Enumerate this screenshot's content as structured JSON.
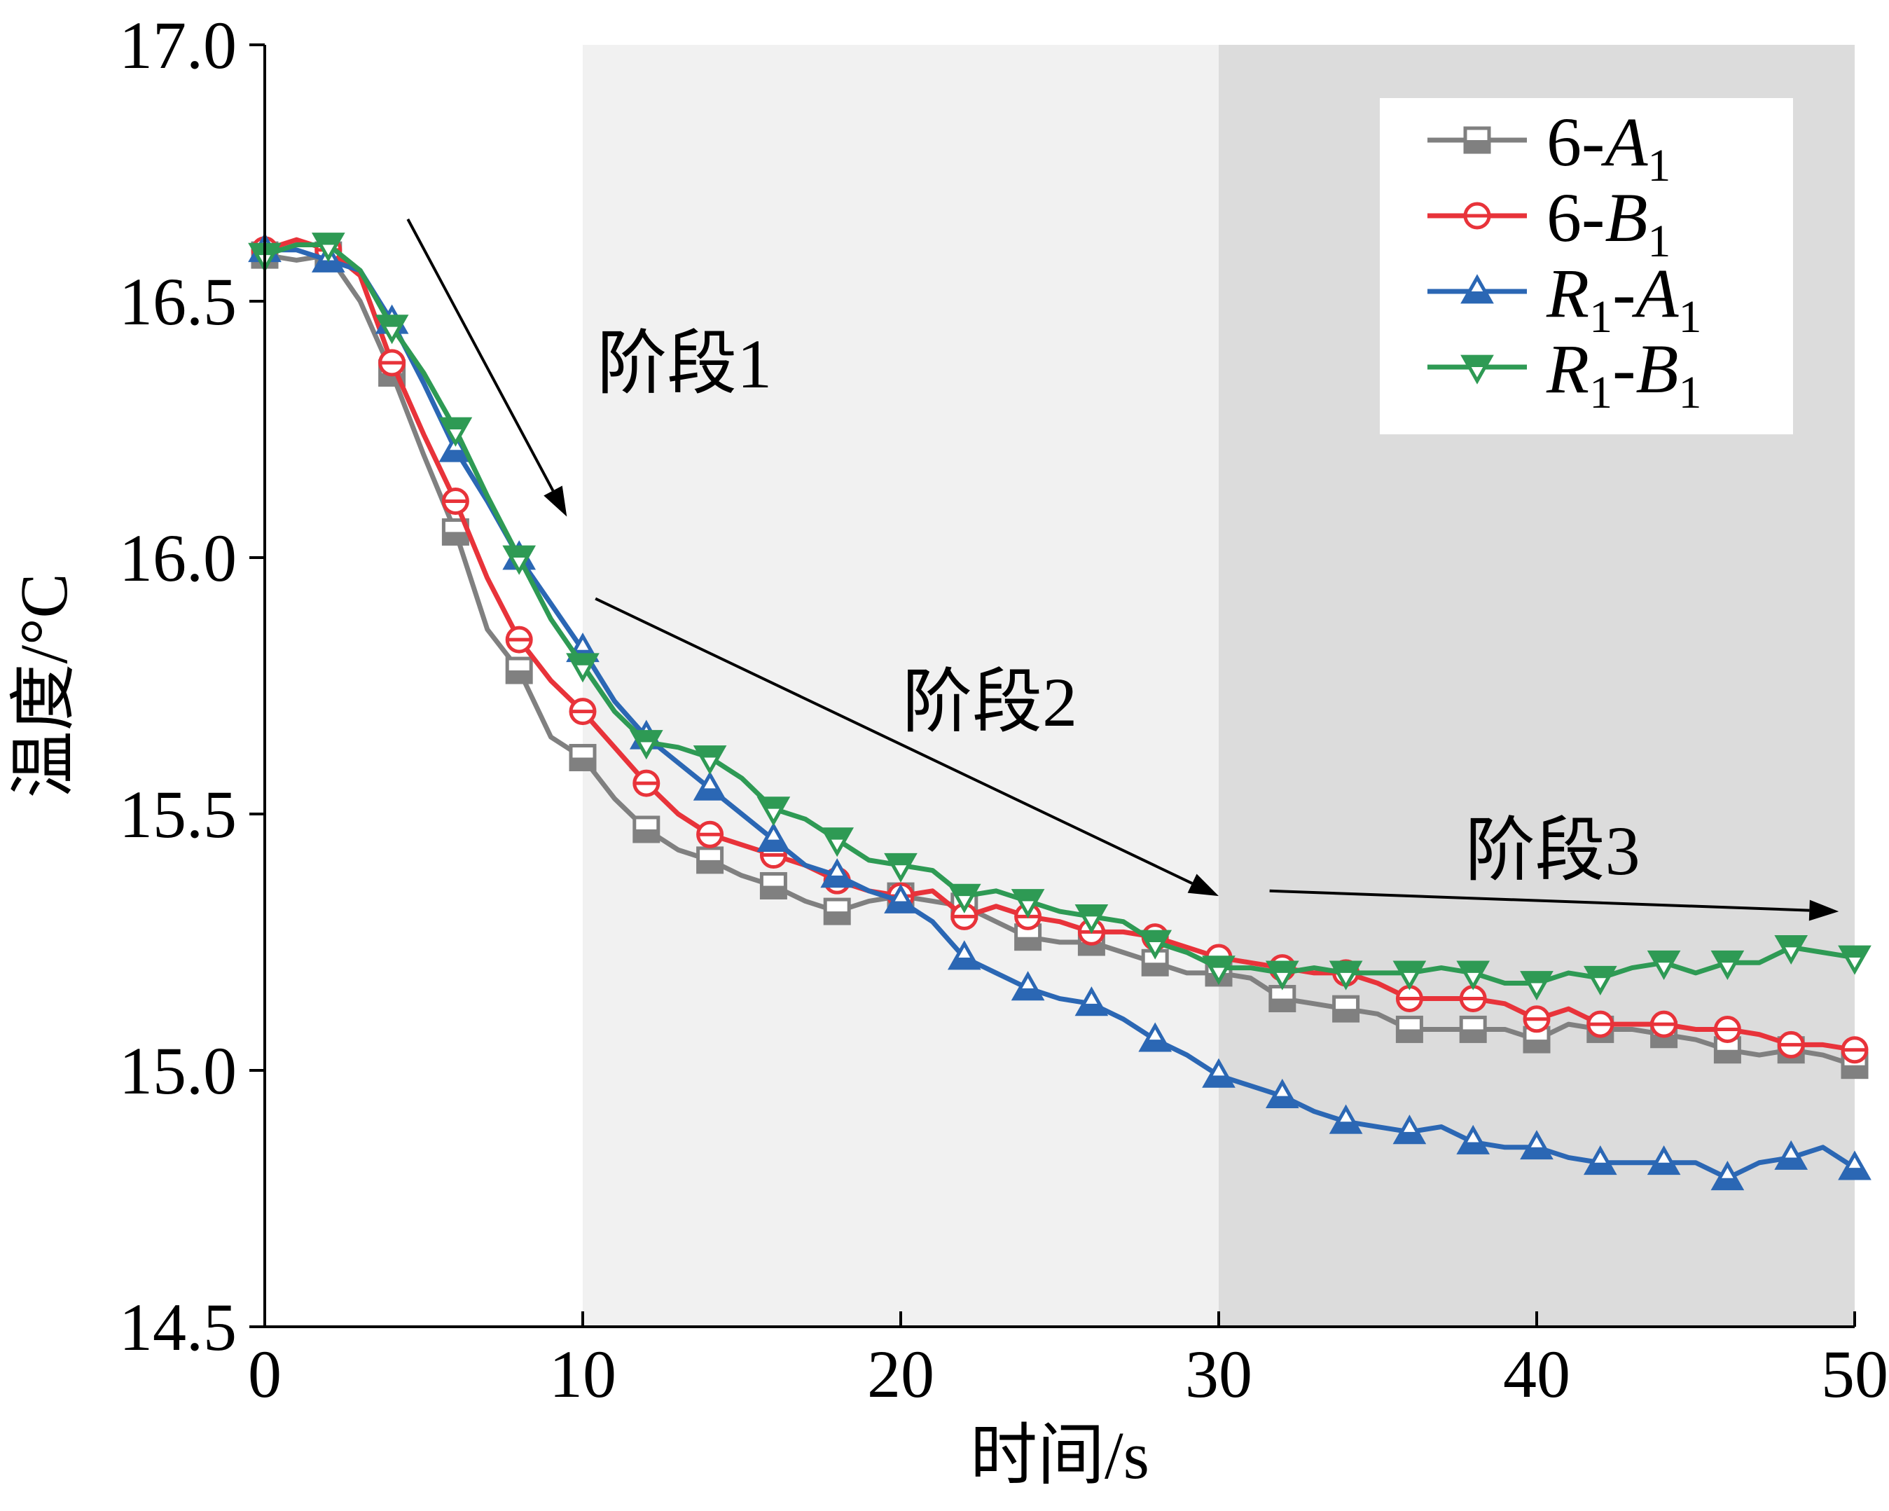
{
  "chart_data": {
    "type": "line",
    "xlabel": "时间/s",
    "ylabel": "温度/°C",
    "xlim": [
      0,
      50
    ],
    "ylim": [
      14.5,
      17.0
    ],
    "x_ticks": [
      "0",
      "10",
      "20",
      "30",
      "40",
      "50"
    ],
    "y_ticks": [
      "14.5",
      "15.0",
      "15.5",
      "16.0",
      "16.5",
      "17.0"
    ],
    "grid": false,
    "legend_position": "top-right",
    "shaded_regions": [
      {
        "x": [
          10,
          30
        ],
        "color": "#f1f1f1"
      },
      {
        "x": [
          30,
          50
        ],
        "color": "#dcdcdc"
      }
    ],
    "annotations": [
      {
        "text": "阶段1",
        "x": 13.2,
        "y": 16.38,
        "arrow_from": [
          4.5,
          16.66
        ],
        "arrow_to": [
          9.5,
          16.08
        ]
      },
      {
        "text": "阶段2",
        "x": 22.8,
        "y": 15.72,
        "arrow_from": [
          10.4,
          15.92
        ],
        "arrow_to": [
          30.0,
          15.34
        ]
      },
      {
        "text": "阶段3",
        "x": 40.5,
        "y": 15.43,
        "arrow_from": [
          31.6,
          15.35
        ],
        "arrow_to": [
          49.5,
          15.31
        ]
      }
    ],
    "series": [
      {
        "name": "6-A1",
        "label_parts": [
          "6-",
          "A",
          "1"
        ],
        "color": "#808080",
        "marker": "square",
        "x": [
          0,
          1,
          2,
          3,
          4,
          5,
          6,
          7,
          8,
          9,
          10,
          11,
          12,
          13,
          14,
          15,
          16,
          17,
          18,
          19,
          20,
          21,
          22,
          23,
          24,
          25,
          26,
          27,
          28,
          29,
          30,
          31,
          32,
          33,
          34,
          35,
          36,
          37,
          38,
          39,
          40,
          41,
          42,
          43,
          44,
          45,
          46,
          47,
          48,
          49,
          50
        ],
        "y": [
          16.59,
          16.58,
          16.59,
          16.5,
          16.36,
          16.2,
          16.05,
          15.86,
          15.78,
          15.65,
          15.61,
          15.53,
          15.47,
          15.43,
          15.41,
          15.38,
          15.36,
          15.33,
          15.31,
          15.33,
          15.34,
          15.33,
          15.32,
          15.29,
          15.26,
          15.25,
          15.25,
          15.23,
          15.21,
          15.19,
          15.19,
          15.18,
          15.14,
          15.13,
          15.12,
          15.11,
          15.08,
          15.08,
          15.08,
          15.08,
          15.06,
          15.09,
          15.08,
          15.08,
          15.07,
          15.06,
          15.04,
          15.03,
          15.04,
          15.03,
          15.01
        ],
        "marker_x": [
          0,
          2,
          4,
          6,
          8,
          10,
          12,
          14,
          16,
          18,
          20,
          22,
          24,
          26,
          28,
          30,
          32,
          34,
          36,
          38,
          40,
          42,
          44,
          46,
          48,
          50
        ]
      },
      {
        "name": "6-B1",
        "label_parts": [
          "6-",
          "B",
          "1"
        ],
        "color": "#e8333a",
        "marker": "circle",
        "x": [
          0,
          1,
          2,
          3,
          4,
          5,
          6,
          7,
          8,
          9,
          10,
          11,
          12,
          13,
          14,
          15,
          16,
          17,
          18,
          19,
          20,
          21,
          22,
          23,
          24,
          25,
          26,
          27,
          28,
          29,
          30,
          31,
          32,
          33,
          34,
          35,
          36,
          37,
          38,
          39,
          40,
          41,
          42,
          43,
          44,
          45,
          46,
          47,
          48,
          49,
          50
        ],
        "y": [
          16.6,
          16.62,
          16.6,
          16.55,
          16.38,
          16.24,
          16.11,
          15.96,
          15.84,
          15.76,
          15.7,
          15.63,
          15.56,
          15.5,
          15.46,
          15.44,
          15.42,
          15.4,
          15.37,
          15.35,
          15.34,
          15.35,
          15.3,
          15.32,
          15.3,
          15.29,
          15.27,
          15.27,
          15.26,
          15.24,
          15.22,
          15.21,
          15.2,
          15.19,
          15.19,
          15.17,
          15.14,
          15.14,
          15.14,
          15.13,
          15.1,
          15.12,
          15.09,
          15.09,
          15.09,
          15.08,
          15.08,
          15.07,
          15.05,
          15.05,
          15.04
        ],
        "marker_x": [
          0,
          2,
          4,
          6,
          8,
          10,
          12,
          14,
          16,
          18,
          20,
          22,
          24,
          26,
          28,
          30,
          32,
          34,
          36,
          38,
          40,
          42,
          44,
          46,
          48,
          50
        ]
      },
      {
        "name": "R1-A1",
        "label_parts": [
          "R",
          "1",
          "-",
          "A",
          "1"
        ],
        "color": "#2b67b4",
        "marker": "triangle-up",
        "x": [
          0,
          1,
          2,
          3,
          4,
          5,
          6,
          7,
          8,
          9,
          10,
          11,
          12,
          13,
          14,
          15,
          16,
          17,
          18,
          19,
          20,
          21,
          22,
          23,
          24,
          25,
          26,
          27,
          28,
          29,
          30,
          31,
          32,
          33,
          34,
          35,
          36,
          37,
          38,
          39,
          40,
          41,
          42,
          43,
          44,
          45,
          46,
          47,
          48,
          49,
          50
        ],
        "y": [
          16.6,
          16.6,
          16.58,
          16.56,
          16.46,
          16.34,
          16.21,
          16.11,
          16.0,
          15.91,
          15.82,
          15.72,
          15.65,
          15.6,
          15.55,
          15.5,
          15.45,
          15.4,
          15.38,
          15.35,
          15.33,
          15.29,
          15.22,
          15.19,
          15.16,
          15.14,
          15.13,
          15.1,
          15.06,
          15.03,
          14.99,
          14.97,
          14.95,
          14.92,
          14.9,
          14.89,
          14.88,
          14.89,
          14.86,
          14.85,
          14.85,
          14.83,
          14.82,
          14.82,
          14.82,
          14.82,
          14.79,
          14.82,
          14.83,
          14.85,
          14.81
        ],
        "marker_x": [
          0,
          2,
          4,
          6,
          8,
          10,
          12,
          14,
          16,
          18,
          20,
          22,
          24,
          26,
          28,
          30,
          32,
          34,
          36,
          38,
          40,
          42,
          44,
          46,
          48,
          50
        ]
      },
      {
        "name": "R1-B1",
        "label_parts": [
          "R",
          "1",
          "-",
          "B",
          "1"
        ],
        "color": "#2e9a54",
        "marker": "triangle-down",
        "x": [
          0,
          1,
          2,
          3,
          4,
          5,
          6,
          7,
          8,
          9,
          10,
          11,
          12,
          13,
          14,
          15,
          16,
          17,
          18,
          19,
          20,
          21,
          22,
          23,
          24,
          25,
          26,
          27,
          28,
          29,
          30,
          31,
          32,
          33,
          34,
          35,
          36,
          37,
          38,
          39,
          40,
          41,
          42,
          43,
          44,
          45,
          46,
          47,
          48,
          49,
          50
        ],
        "y": [
          16.59,
          16.61,
          16.61,
          16.56,
          16.45,
          16.36,
          16.25,
          16.12,
          16.0,
          15.88,
          15.79,
          15.7,
          15.64,
          15.63,
          15.61,
          15.57,
          15.51,
          15.49,
          15.45,
          15.41,
          15.4,
          15.39,
          15.34,
          15.35,
          15.33,
          15.31,
          15.3,
          15.29,
          15.25,
          15.23,
          15.2,
          15.2,
          15.19,
          15.2,
          15.19,
          15.19,
          15.19,
          15.2,
          15.19,
          15.17,
          15.17,
          15.19,
          15.18,
          15.2,
          15.21,
          15.19,
          15.21,
          15.21,
          15.24,
          15.23,
          15.22
        ],
        "marker_x": [
          0,
          2,
          4,
          6,
          8,
          10,
          12,
          14,
          16,
          18,
          20,
          22,
          24,
          26,
          28,
          30,
          32,
          34,
          36,
          38,
          40,
          42,
          44,
          46,
          48,
          50
        ]
      }
    ]
  }
}
